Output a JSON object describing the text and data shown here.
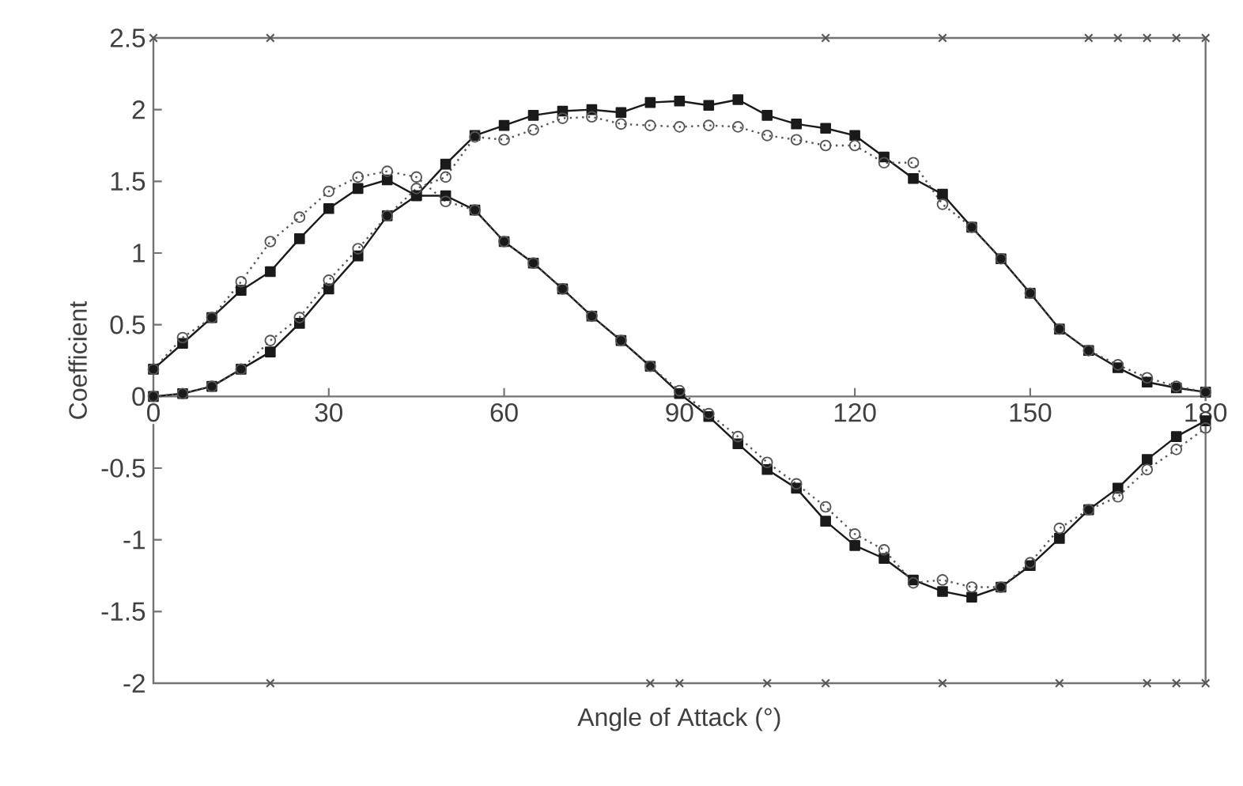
{
  "chart_data": {
    "type": "line",
    "xlabel": "Angle of Attack (°)",
    "ylabel": "Coefficient",
    "x": [
      0,
      5,
      10,
      15,
      20,
      25,
      30,
      35,
      40,
      45,
      50,
      55,
      60,
      65,
      70,
      75,
      80,
      85,
      90,
      95,
      100,
      105,
      110,
      115,
      120,
      125,
      130,
      135,
      140,
      145,
      150,
      155,
      160,
      165,
      170,
      175,
      180
    ],
    "series": [
      {
        "color": "#1a1a1a",
        "marker": "square",
        "line_style": "solid",
        "values": [
          0.19,
          0.37,
          0.55,
          0.74,
          0.87,
          1.1,
          1.31,
          1.45,
          1.51,
          1.4,
          1.4,
          1.3,
          1.08,
          0.93,
          0.75,
          0.56,
          0.39,
          0.21,
          0.02,
          -0.14,
          -0.33,
          -0.51,
          -0.64,
          -0.87,
          -1.04,
          -1.13,
          -1.28,
          -1.36,
          -1.4,
          -1.33,
          -1.18,
          -0.99,
          -0.79,
          -0.64,
          -0.44,
          -0.28,
          -0.17
        ]
      },
      {
        "color": "#555555",
        "marker": "circle",
        "line_style": "dotted",
        "values": [
          0.19,
          0.41,
          0.55,
          0.8,
          1.08,
          1.25,
          1.43,
          1.53,
          1.57,
          1.53,
          1.36,
          1.3,
          1.08,
          0.93,
          0.75,
          0.56,
          0.39,
          0.21,
          0.04,
          -0.12,
          -0.28,
          -0.46,
          -0.61,
          -0.77,
          -0.96,
          -1.07,
          -1.3,
          -1.28,
          -1.33,
          -1.33,
          -1.16,
          -0.92,
          -0.79,
          -0.7,
          -0.51,
          -0.37,
          -0.22
        ]
      },
      {
        "color": "#1a1a1a",
        "marker": "square",
        "line_style": "solid",
        "values": [
          0,
          0.02,
          0.07,
          0.19,
          0.31,
          0.51,
          0.75,
          0.98,
          1.26,
          1.4,
          1.62,
          1.82,
          1.89,
          1.96,
          1.99,
          2.0,
          1.98,
          2.05,
          2.06,
          2.03,
          2.07,
          1.96,
          1.9,
          1.87,
          1.82,
          1.67,
          1.52,
          1.41,
          1.18,
          0.96,
          0.72,
          0.47,
          0.32,
          0.2,
          0.1,
          0.06,
          0.03
        ]
      },
      {
        "color": "#555555",
        "marker": "circle",
        "line_style": "dotted",
        "values": [
          0,
          0.02,
          0.07,
          0.19,
          0.39,
          0.55,
          0.81,
          1.03,
          1.26,
          1.45,
          1.53,
          1.81,
          1.79,
          1.86,
          1.94,
          1.95,
          1.9,
          1.89,
          1.88,
          1.89,
          1.88,
          1.82,
          1.79,
          1.75,
          1.75,
          1.63,
          1.63,
          1.34,
          1.18,
          0.96,
          0.72,
          0.47,
          0.32,
          0.22,
          0.13,
          0.07,
          0.03
        ]
      },
      {
        "type": "scatter",
        "color": "#555555",
        "marker": "cross",
        "x": [
          0,
          20,
          115,
          135,
          160,
          165,
          170,
          175,
          180,
          20,
          85,
          90,
          105,
          115,
          135,
          155,
          170,
          175,
          180
        ],
        "values": [
          2.5,
          2.5,
          2.5,
          2.5,
          2.5,
          2.5,
          2.5,
          2.5,
          2.5,
          -2,
          -2,
          -2,
          -2,
          -2,
          -2,
          -2,
          -2,
          -2,
          -2
        ]
      }
    ],
    "xlim": [
      0,
      180
    ],
    "xticks": [
      0,
      30,
      60,
      90,
      120,
      150,
      180
    ],
    "ylim": [
      -2,
      2.5
    ],
    "yticks": [
      -2,
      -1.5,
      -1,
      -0.5,
      0,
      0.5,
      1,
      1.5,
      2,
      2.5
    ],
    "grid": false
  }
}
